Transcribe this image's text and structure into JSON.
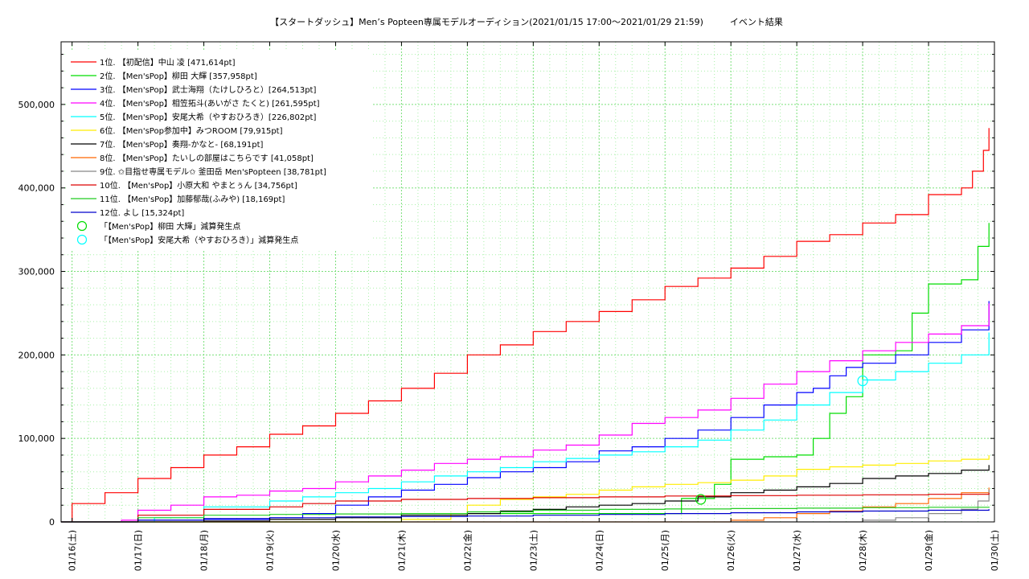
{
  "title": "【スタートダッシュ】Men’s Popteen専属モデルオーディション(2021/01/15 17:00〜2021/01/29 21:59)　　　イベント結果",
  "chart_data": {
    "type": "line",
    "title": "【スタートダッシュ】Men’s Popteen専属モデルオーディション(2021/01/15 17:00〜2021/01/29 21:59)　　　イベント結果",
    "xlabel": "",
    "ylabel": "",
    "xlim": [
      "2021-01-15 20:00",
      "2021-01-30 00:00"
    ],
    "ylim": [
      0,
      575000
    ],
    "y_ticks": [
      0,
      100000,
      200000,
      300000,
      400000,
      500000
    ],
    "y_tick_labels": [
      "0",
      "100,000",
      "200,000",
      "300,000",
      "400,000",
      "500,000"
    ],
    "x_tick_labels": [
      "01/16(土)",
      "01/17(日)",
      "01/18(月)",
      "01/19(火)",
      "01/20(水)",
      "01/21(木)",
      "01/22(金)",
      "01/23(土)",
      "01/24(日)",
      "01/25(月)",
      "01/26(火)",
      "01/27(水)",
      "01/28(木)",
      "01/29(金)",
      "01/30(土)"
    ],
    "grid": true,
    "legend_position": "top-left",
    "series": [
      {
        "name": "1位. 【初配信】中山 凌 [471,614pt]",
        "color": "#ff0000",
        "x": [
          "2021-01-15 20:00",
          "2021-01-16 00:00",
          "2021-01-16 12:00",
          "2021-01-17 00:00",
          "2021-01-17 12:00",
          "2021-01-18 00:00",
          "2021-01-18 12:00",
          "2021-01-19 00:00",
          "2021-01-19 12:00",
          "2021-01-20 00:00",
          "2021-01-20 12:00",
          "2021-01-21 00:00",
          "2021-01-21 12:00",
          "2021-01-22 00:00",
          "2021-01-22 12:00",
          "2021-01-23 00:00",
          "2021-01-23 12:00",
          "2021-01-24 00:00",
          "2021-01-24 12:00",
          "2021-01-25 00:00",
          "2021-01-25 12:00",
          "2021-01-26 00:00",
          "2021-01-26 12:00",
          "2021-01-27 00:00",
          "2021-01-27 12:00",
          "2021-01-28 00:00",
          "2021-01-28 12:00",
          "2021-01-29 00:00",
          "2021-01-29 12:00",
          "2021-01-29 16:00",
          "2021-01-29 20:00",
          "2021-01-29 22:00"
        ],
        "y": [
          0,
          22000,
          35000,
          52000,
          65000,
          80000,
          90000,
          105000,
          115000,
          130000,
          145000,
          160000,
          178000,
          200000,
          212000,
          228000,
          240000,
          252000,
          266000,
          282000,
          292000,
          304000,
          318000,
          336000,
          344000,
          358000,
          368000,
          392000,
          400000,
          420000,
          445000,
          471614
        ]
      },
      {
        "name": "2位. 【Men'sPop】柳田 大輝 [357,958pt]",
        "color": "#00dd00",
        "x": [
          "2021-01-15 20:00",
          "2021-01-16 00:00",
          "2021-01-17 00:00",
          "2021-01-18 00:00",
          "2021-01-19 00:00",
          "2021-01-20 00:00",
          "2021-01-21 00:00",
          "2021-01-22 00:00",
          "2021-01-23 00:00",
          "2021-01-24 00:00",
          "2021-01-25 00:00",
          "2021-01-25 06:00",
          "2021-01-25 12:00",
          "2021-01-25 18:00",
          "2021-01-26 00:00",
          "2021-01-26 12:00",
          "2021-01-27 00:00",
          "2021-01-27 06:00",
          "2021-01-27 12:00",
          "2021-01-27 18:00",
          "2021-01-28 00:00",
          "2021-01-28 12:00",
          "2021-01-28 18:00",
          "2021-01-29 00:00",
          "2021-01-29 12:00",
          "2021-01-29 18:00",
          "2021-01-29 22:00"
        ],
        "y": [
          0,
          0,
          0,
          0,
          0,
          0,
          10000,
          10000,
          10000,
          10000,
          10000,
          28000,
          28000,
          45000,
          75000,
          78000,
          80000,
          100000,
          130000,
          150000,
          200000,
          205000,
          250000,
          285000,
          290000,
          330000,
          357958
        ]
      },
      {
        "name": "3位. 【Men'sPop】武士海翔（たけしひろと）[264,513pt]",
        "color": "#0000ff",
        "x": [
          "2021-01-15 20:00",
          "2021-01-16 00:00",
          "2021-01-17 00:00",
          "2021-01-18 00:00",
          "2021-01-19 00:00",
          "2021-01-19 12:00",
          "2021-01-20 00:00",
          "2021-01-20 12:00",
          "2021-01-21 00:00",
          "2021-01-21 12:00",
          "2021-01-22 00:00",
          "2021-01-22 12:00",
          "2021-01-23 00:00",
          "2021-01-23 12:00",
          "2021-01-24 00:00",
          "2021-01-24 12:00",
          "2021-01-25 00:00",
          "2021-01-25 12:00",
          "2021-01-26 00:00",
          "2021-01-26 12:00",
          "2021-01-27 00:00",
          "2021-01-27 06:00",
          "2021-01-27 12:00",
          "2021-01-27 18:00",
          "2021-01-28 00:00",
          "2021-01-28 12:00",
          "2021-01-29 00:00",
          "2021-01-29 12:00",
          "2021-01-29 22:00"
        ],
        "y": [
          0,
          0,
          2000,
          3000,
          5000,
          10000,
          20000,
          30000,
          38000,
          45000,
          53000,
          60000,
          65000,
          72000,
          85000,
          90000,
          100000,
          110000,
          125000,
          140000,
          155000,
          160000,
          175000,
          185000,
          190000,
          200000,
          215000,
          230000,
          264513
        ]
      },
      {
        "name": "4位. 【Men'sPop】相笠拓斗(あいがさ たくと) [261,595pt]",
        "color": "#ff00ff",
        "x": [
          "2021-01-15 20:00",
          "2021-01-16 00:00",
          "2021-01-16 18:00",
          "2021-01-17 00:00",
          "2021-01-17 12:00",
          "2021-01-18 00:00",
          "2021-01-18 12:00",
          "2021-01-19 00:00",
          "2021-01-19 12:00",
          "2021-01-20 00:00",
          "2021-01-20 12:00",
          "2021-01-21 00:00",
          "2021-01-21 12:00",
          "2021-01-22 00:00",
          "2021-01-22 12:00",
          "2021-01-23 00:00",
          "2021-01-23 12:00",
          "2021-01-24 00:00",
          "2021-01-24 12:00",
          "2021-01-25 00:00",
          "2021-01-25 12:00",
          "2021-01-26 00:00",
          "2021-01-26 12:00",
          "2021-01-27 00:00",
          "2021-01-27 12:00",
          "2021-01-28 00:00",
          "2021-01-28 12:00",
          "2021-01-29 00:00",
          "2021-01-29 12:00",
          "2021-01-29 22:00"
        ],
        "y": [
          0,
          0,
          2000,
          14000,
          20000,
          30000,
          32000,
          37000,
          40000,
          48000,
          55000,
          62000,
          70000,
          75000,
          78000,
          86000,
          92000,
          104000,
          118000,
          125000,
          134000,
          148000,
          165000,
          180000,
          193000,
          205000,
          215000,
          225000,
          235000,
          261595
        ]
      },
      {
        "name": "5位. 【Men'sPop】安尾大希（やすおひろき）[226,802pt]",
        "color": "#00ffff",
        "x": [
          "2021-01-15 20:00",
          "2021-01-16 00:00",
          "2021-01-17 00:00",
          "2021-01-17 06:00",
          "2021-01-18 00:00",
          "2021-01-19 00:00",
          "2021-01-19 12:00",
          "2021-01-20 00:00",
          "2021-01-20 12:00",
          "2021-01-21 00:00",
          "2021-01-21 12:00",
          "2021-01-22 00:00",
          "2021-01-22 12:00",
          "2021-01-23 00:00",
          "2021-01-23 12:00",
          "2021-01-24 00:00",
          "2021-01-24 12:00",
          "2021-01-25 00:00",
          "2021-01-25 12:00",
          "2021-01-26 00:00",
          "2021-01-26 12:00",
          "2021-01-27 00:00",
          "2021-01-27 12:00",
          "2021-01-28 00:00",
          "2021-01-28 12:00",
          "2021-01-29 00:00",
          "2021-01-29 12:00",
          "2021-01-29 22:00"
        ],
        "y": [
          0,
          0,
          0,
          5000,
          18000,
          25000,
          30000,
          35000,
          40000,
          48000,
          55000,
          60000,
          65000,
          72000,
          76000,
          80000,
          84000,
          90000,
          98000,
          110000,
          122000,
          140000,
          155000,
          170000,
          180000,
          190000,
          200000,
          226802
        ]
      },
      {
        "name": "6位. 【Men'sPop参加中】みつROOM [79,915pt]",
        "color": "#ffee00",
        "x": [
          "2021-01-15 20:00",
          "2021-01-20 00:00",
          "2021-01-21 00:00",
          "2021-01-21 18:00",
          "2021-01-22 00:00",
          "2021-01-22 12:00",
          "2021-01-23 00:00",
          "2021-01-23 12:00",
          "2021-01-24 00:00",
          "2021-01-24 12:00",
          "2021-01-25 00:00",
          "2021-01-25 12:00",
          "2021-01-26 00:00",
          "2021-01-26 12:00",
          "2021-01-27 00:00",
          "2021-01-27 12:00",
          "2021-01-28 00:00",
          "2021-01-28 12:00",
          "2021-01-29 00:00",
          "2021-01-29 12:00",
          "2021-01-29 22:00"
        ],
        "y": [
          0,
          0,
          3000,
          10000,
          20000,
          27000,
          30000,
          33000,
          38000,
          42000,
          45000,
          47000,
          50000,
          55000,
          63000,
          66000,
          68000,
          70000,
          73000,
          75000,
          79915
        ]
      },
      {
        "name": "7位. 【Men'sPop】奏翔-かなと- [68,191pt]",
        "color": "#000000",
        "x": [
          "2021-01-15 20:00",
          "2021-01-17 00:00",
          "2021-01-18 00:00",
          "2021-01-19 00:00",
          "2021-01-20 00:00",
          "2021-01-21 00:00",
          "2021-01-22 00:00",
          "2021-01-22 12:00",
          "2021-01-23 00:00",
          "2021-01-23 12:00",
          "2021-01-24 00:00",
          "2021-01-24 12:00",
          "2021-01-25 00:00",
          "2021-01-25 12:00",
          "2021-01-26 00:00",
          "2021-01-26 12:00",
          "2021-01-27 00:00",
          "2021-01-27 12:00",
          "2021-01-28 00:00",
          "2021-01-28 12:00",
          "2021-01-29 00:00",
          "2021-01-29 12:00",
          "2021-01-29 22:00"
        ],
        "y": [
          0,
          0,
          1000,
          3000,
          5000,
          8000,
          10000,
          13000,
          15000,
          18000,
          20000,
          22000,
          25000,
          30000,
          35000,
          38000,
          42000,
          46000,
          52000,
          55000,
          58000,
          62000,
          68191
        ]
      },
      {
        "name": "8位. 【Men'sPop】たいしの部屋はこちらです [41,058pt]",
        "color": "#ff6600",
        "x": [
          "2021-01-15 20:00",
          "2021-01-25 12:00",
          "2021-01-26 00:00",
          "2021-01-26 12:00",
          "2021-01-27 00:00",
          "2021-01-27 12:00",
          "2021-01-28 00:00",
          "2021-01-28 12:00",
          "2021-01-29 00:00",
          "2021-01-29 12:00",
          "2021-01-29 22:00"
        ],
        "y": [
          0,
          0,
          2000,
          5000,
          10000,
          13000,
          18000,
          22000,
          28000,
          35000,
          41058
        ]
      },
      {
        "name": "9位. ✩目指せ専属モデル✩ 釜田岳 Men'sPopteen [38,781pt]",
        "color": "#888888",
        "x": [
          "2021-01-15 20:00",
          "2021-01-27 12:00",
          "2021-01-28 00:00",
          "2021-01-28 12:00",
          "2021-01-29 00:00",
          "2021-01-29 12:00",
          "2021-01-29 18:00",
          "2021-01-29 22:00"
        ],
        "y": [
          0,
          0,
          2000,
          5000,
          10000,
          15000,
          25000,
          38781
        ]
      },
      {
        "name": "10位. 【Men'sPop】小原大和 やまとぅん [34,756pt]",
        "color": "#dd0000",
        "x": [
          "2021-01-15 20:00",
          "2021-01-17 00:00",
          "2021-01-18 00:00",
          "2021-01-19 00:00",
          "2021-01-19 12:00",
          "2021-01-20 00:00",
          "2021-01-21 00:00",
          "2021-01-22 00:00",
          "2021-01-23 00:00",
          "2021-01-24 00:00",
          "2021-01-25 00:00",
          "2021-01-26 00:00",
          "2021-01-27 00:00",
          "2021-01-28 00:00",
          "2021-01-29 00:00",
          "2021-01-29 22:00"
        ],
        "y": [
          0,
          8000,
          15000,
          18000,
          22000,
          25000,
          27000,
          28000,
          29000,
          30000,
          31000,
          31500,
          32000,
          32500,
          33000,
          34756
        ]
      },
      {
        "name": "11位. 【Men'sPop】加藤郁哉(ふみや) [18,169pt]",
        "color": "#22cc22",
        "x": [
          "2021-01-15 20:00",
          "2021-01-17 00:00",
          "2021-01-18 00:00",
          "2021-01-19 00:00",
          "2021-01-20 00:00",
          "2021-01-21 00:00",
          "2021-01-22 00:00",
          "2021-01-23 00:00",
          "2021-01-24 00:00",
          "2021-01-25 00:00",
          "2021-01-26 00:00",
          "2021-01-27 00:00",
          "2021-01-28 00:00",
          "2021-01-29 00:00",
          "2021-01-29 22:00"
        ],
        "y": [
          0,
          5000,
          8000,
          9000,
          9500,
          10000,
          12000,
          14000,
          15000,
          15500,
          16000,
          16500,
          17000,
          17500,
          18169
        ]
      },
      {
        "name": "12位. よし [15,324pt]",
        "color": "#0000cc",
        "x": [
          "2021-01-15 20:00",
          "2021-01-17 00:00",
          "2021-01-18 00:00",
          "2021-01-19 00:00",
          "2021-01-20 00:00",
          "2021-01-21 00:00",
          "2021-01-22 00:00",
          "2021-01-23 00:00",
          "2021-01-24 00:00",
          "2021-01-25 00:00",
          "2021-01-26 00:00",
          "2021-01-27 00:00",
          "2021-01-28 00:00",
          "2021-01-29 00:00",
          "2021-01-29 22:00"
        ],
        "y": [
          0,
          2000,
          4000,
          5000,
          6000,
          6500,
          7000,
          8000,
          9000,
          10000,
          11000,
          12000,
          13000,
          14000,
          15324
        ]
      }
    ],
    "markers": [
      {
        "name": "「【Men'sPop】柳田 大輝」減算発生点",
        "color": "#00dd00",
        "x": "2021-01-25 13:00",
        "y": 27000
      },
      {
        "name": "「【Men'sPop】安尾大希（やすおひろき）」減算発生点",
        "color": "#00ffff",
        "x": "2021-01-28 00:00",
        "y": 169000
      }
    ]
  }
}
